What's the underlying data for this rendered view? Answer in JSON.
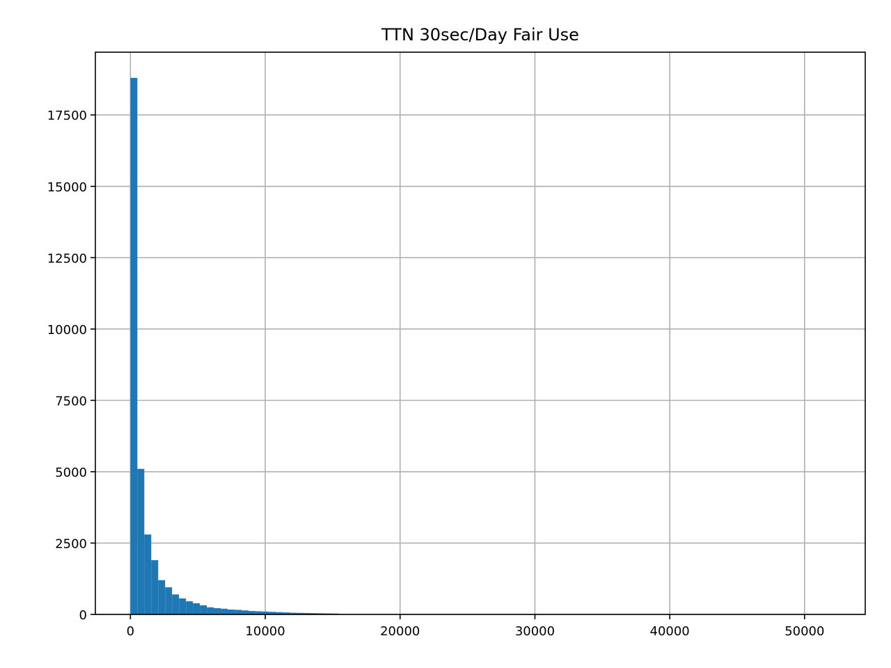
{
  "chart_data": {
    "type": "bar",
    "title": "TTN 30sec/Day Fair Use",
    "xlabel": "",
    "ylabel": "",
    "xlim": [
      -2600,
      54500
    ],
    "ylim": [
      0,
      19700
    ],
    "grid": true,
    "bar_color": "#1f77b4",
    "bin_width": 515,
    "bin_start": 0,
    "values": [
      18800,
      5100,
      2800,
      1900,
      1200,
      950,
      700,
      560,
      460,
      390,
      320,
      250,
      220,
      200,
      170,
      160,
      140,
      120,
      110,
      100,
      90,
      80,
      70,
      60,
      55,
      50,
      45,
      40,
      35,
      30
    ],
    "x_ticks": [
      "0",
      "10000",
      "20000",
      "30000",
      "40000",
      "50000"
    ],
    "x_tick_values": [
      0,
      10000,
      20000,
      30000,
      40000,
      50000
    ],
    "y_ticks": [
      "0",
      "2500",
      "5000",
      "7500",
      "10000",
      "12500",
      "15000",
      "17500"
    ],
    "y_tick_values": [
      0,
      2500,
      5000,
      7500,
      10000,
      12500,
      15000,
      17500
    ]
  }
}
